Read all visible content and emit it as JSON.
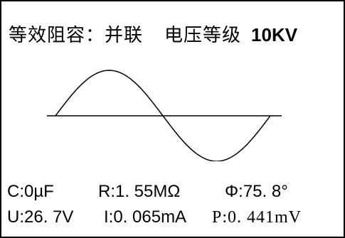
{
  "header": {
    "mode_label": "等效阻容：",
    "mode_value": "并联",
    "level_label": "电压等级",
    "level_value": "10KV"
  },
  "readings": {
    "capacitance": "C:0µF",
    "resistance": "R:1. 55MΩ",
    "phase": "Φ:75. 8°",
    "voltage": "U:26. 7V",
    "current": "I:0. 065mA",
    "power": "P:0. 441mV"
  }
}
